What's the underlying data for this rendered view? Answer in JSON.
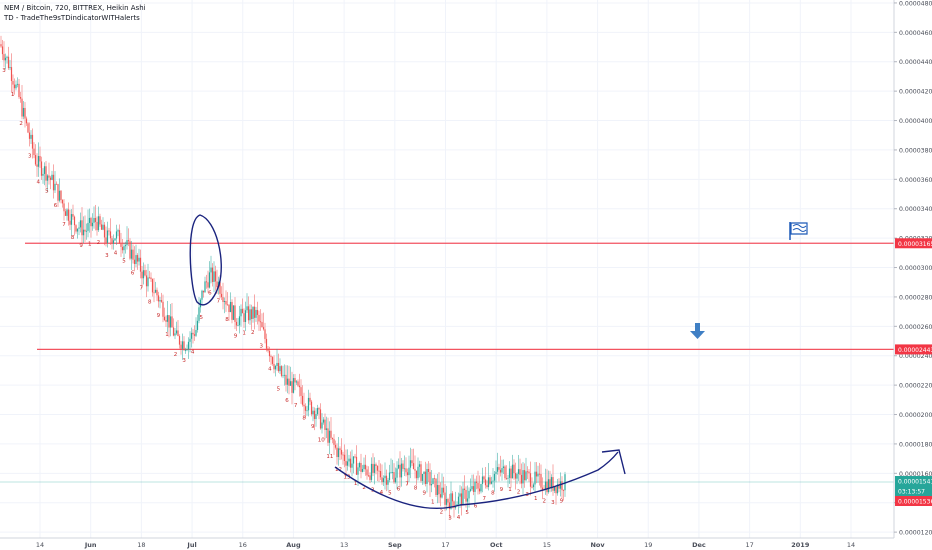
{
  "legend": {
    "title": "NEM / Bitcoin, 720, BITTREX, Heikin Ashi",
    "indicator": "TD - TradeThe9sTDindicatorWITHalerts"
  },
  "chart_data": {
    "type": "candlestick",
    "symbol": "NEM / Bitcoin",
    "interval": "720",
    "exchange": "BITTREX",
    "style": "Heikin Ashi",
    "ylim": [
      1.16e-05,
      4.82e-05
    ],
    "y_ticks": [
      "0.00004800",
      "0.00004600",
      "0.00004400",
      "0.00004200",
      "0.00004000",
      "0.00003800",
      "0.00003600",
      "0.00003400",
      "0.00003200",
      "0.00003000",
      "0.00002800",
      "0.00002600",
      "0.00002400",
      "0.00002200",
      "0.00002000",
      "0.00001800",
      "0.00001600",
      "0.00001400",
      "0.00001200"
    ],
    "x_ticks": [
      "14",
      "Jun",
      "18",
      "Jul",
      "16",
      "Aug",
      "13",
      "Sep",
      "17",
      "Oct",
      "15",
      "Nov",
      "19",
      "Dec",
      "17",
      "2019",
      "14"
    ],
    "grid": true,
    "price_labels": [
      {
        "value": "0.00003165",
        "color": "#f23645"
      },
      {
        "value": "0.00002443",
        "color": "#f23645"
      },
      {
        "value": "0.00001541",
        "color": "#26a69a"
      },
      {
        "value": "03:13:57",
        "color": "#26a69a"
      },
      {
        "value": "0.00001536",
        "color": "#f23645"
      }
    ],
    "horizontal_lines": [
      {
        "price": 3.165e-05,
        "color": "#f23645"
      },
      {
        "price": 2.443e-05,
        "color": "#f23645"
      }
    ],
    "price_path": [
      [
        0,
        4.52e-05
      ],
      [
        8,
        4.4e-05
      ],
      [
        18,
        4.18e-05
      ],
      [
        27,
        3.95e-05
      ],
      [
        36,
        3.72e-05
      ],
      [
        46,
        3.65e-05
      ],
      [
        55,
        3.55e-05
      ],
      [
        65,
        3.4e-05
      ],
      [
        75,
        3.3e-05
      ],
      [
        85,
        3.25e-05
      ],
      [
        96,
        3.32e-05
      ],
      [
        106,
        3.2e-05
      ],
      [
        116,
        3.22e-05
      ],
      [
        126,
        3.15e-05
      ],
      [
        136,
        3.05e-05
      ],
      [
        146,
        2.92e-05
      ],
      [
        156,
        2.83e-05
      ],
      [
        166,
        2.68e-05
      ],
      [
        176,
        2.52e-05
      ],
      [
        186,
        2.48e-05
      ],
      [
        196,
        2.58e-05
      ],
      [
        203,
        2.85e-05
      ],
      [
        210,
        2.95e-05
      ],
      [
        218,
        2.9e-05
      ],
      [
        226,
        2.78e-05
      ],
      [
        236,
        2.65e-05
      ],
      [
        246,
        2.68e-05
      ],
      [
        256,
        2.68e-05
      ],
      [
        266,
        2.5e-05
      ],
      [
        276,
        2.32e-05
      ],
      [
        286,
        2.22e-05
      ],
      [
        296,
        2.18e-05
      ],
      [
        306,
        2.08e-05
      ],
      [
        316,
        2.02e-05
      ],
      [
        326,
        1.88e-05
      ],
      [
        336,
        1.76e-05
      ],
      [
        346,
        1.7e-05
      ],
      [
        356,
        1.65e-05
      ],
      [
        366,
        1.62e-05
      ],
      [
        376,
        1.6e-05
      ],
      [
        386,
        1.58e-05
      ],
      [
        396,
        1.6e-05
      ],
      [
        406,
        1.65e-05
      ],
      [
        416,
        1.62e-05
      ],
      [
        426,
        1.58e-05
      ],
      [
        436,
        1.5e-05
      ],
      [
        446,
        1.42e-05
      ],
      [
        456,
        1.41e-05
      ],
      [
        466,
        1.45e-05
      ],
      [
        476,
        1.5e-05
      ],
      [
        486,
        1.56e-05
      ],
      [
        496,
        1.6e-05
      ],
      [
        506,
        1.62e-05
      ],
      [
        516,
        1.6e-05
      ],
      [
        526,
        1.58e-05
      ],
      [
        536,
        1.55e-05
      ],
      [
        546,
        1.53e-05
      ],
      [
        556,
        1.52e-05
      ],
      [
        566,
        1.54e-05
      ]
    ],
    "td_counts": [
      "3",
      "1",
      "2",
      "3",
      "4",
      "5",
      "6",
      "7",
      "8",
      "9",
      "1",
      "2",
      "3",
      "4",
      "5",
      "6",
      "7",
      "8",
      "9",
      "1",
      "2",
      "3",
      "4",
      "5",
      "6",
      "7",
      "8",
      "9",
      "1",
      "2",
      "3",
      "4",
      "5",
      "6",
      "7",
      "8",
      "9",
      "10",
      "11",
      "12",
      "13",
      "1",
      "2",
      "3",
      "4",
      "5",
      "6",
      "7",
      "8",
      "9",
      "1",
      "2",
      "3",
      "4",
      "5",
      "6",
      "7",
      "8",
      "9",
      "1",
      "2",
      "3",
      "1",
      "2",
      "3",
      "9"
    ],
    "annotations": [
      "ellipse around July spike",
      "arc under rounded bottom with arrow",
      "flag icon at 0.00003165 line",
      "down arrow at 0.00002443 line"
    ]
  }
}
